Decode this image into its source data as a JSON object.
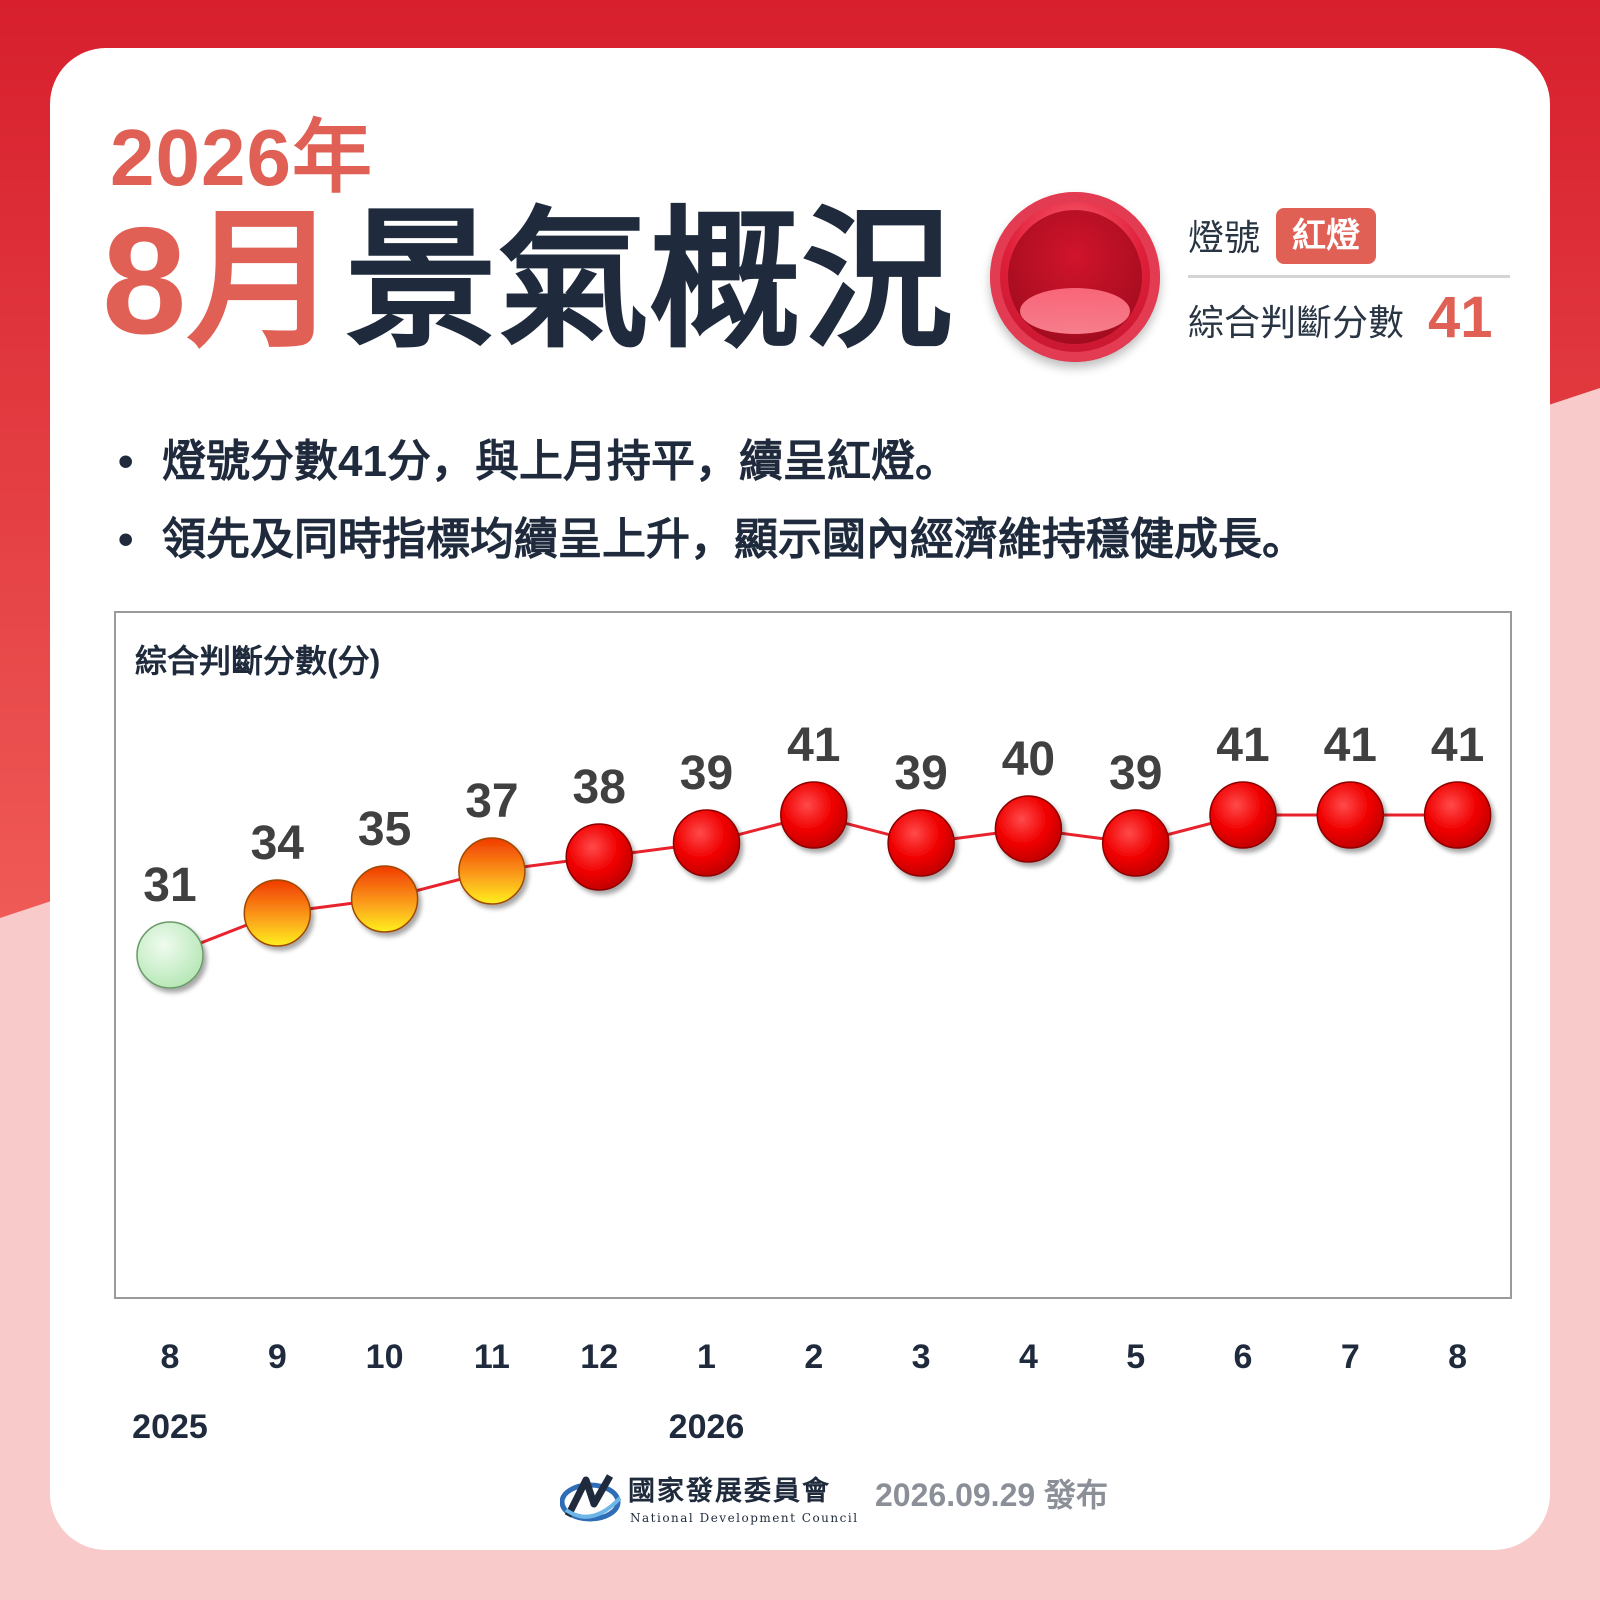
{
  "colors": {
    "brand_red": "#e06055",
    "dark_text": "#1f2b3c",
    "light_pink": "#f9caca",
    "border_red": "#d71f2d",
    "line_red": "#e8232d",
    "green_dot": "#cfefd0",
    "yellow_red_dot": "#f6a11b",
    "red_dot": "#ee0000"
  },
  "header": {
    "year_title": "2026年",
    "month_title": "8月",
    "headline": "景氣概況"
  },
  "signal": {
    "label": "燈號",
    "badge": "紅燈",
    "score_label": "綜合判斷分數",
    "score_value": "41",
    "icon": "red-light-icon"
  },
  "bullets": [
    "燈號分數41分，與上月持平，續呈紅燈。",
    "領先及同時指標均續呈上升，顯示國內經濟維持穩健成長。"
  ],
  "bullet_marker": "•",
  "chart_data": {
    "type": "line",
    "title": "綜合判斷分數(分)",
    "categories": [
      "8",
      "9",
      "10",
      "11",
      "12",
      "1",
      "2",
      "3",
      "4",
      "5",
      "6",
      "7",
      "8"
    ],
    "year_labels": [
      {
        "label": "2025",
        "at_index": 0
      },
      {
        "label": "2026",
        "at_index": 5
      }
    ],
    "series": [
      {
        "values": [
          31,
          34,
          35,
          37,
          38,
          39,
          41,
          39,
          40,
          39,
          41,
          41,
          41
        ],
        "signals": [
          "green",
          "yellow-red",
          "yellow-red",
          "yellow-red",
          "red",
          "red",
          "red",
          "red",
          "red",
          "red",
          "red",
          "red",
          "red"
        ]
      }
    ],
    "data_labels": true,
    "grid": false
  },
  "footer": {
    "org_name_zh": "國家發展委員會",
    "org_name_en": "National Development Council",
    "release": "2026.09.29 發布"
  }
}
